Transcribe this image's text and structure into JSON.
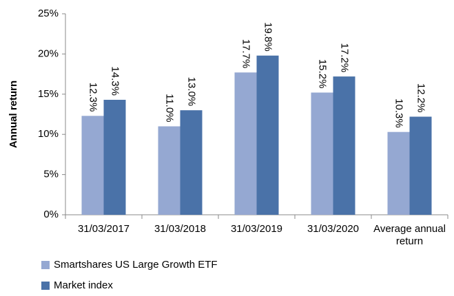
{
  "chart_data": {
    "type": "bar",
    "y_label": "Annual return",
    "categories": [
      "31/03/2017",
      "31/03/2018",
      "31/03/2019",
      "31/03/2020",
      "Average annual return"
    ],
    "series": [
      {
        "name": "Smartshares US Large Growth ETF",
        "color": "#95a8d2",
        "values": [
          12.3,
          11.0,
          17.7,
          15.2,
          10.3
        ],
        "value_labels": [
          "12.3%",
          "11.0%",
          "17.7%",
          "15.2%",
          "10.3%"
        ]
      },
      {
        "name": "Market index",
        "color": "#4a72a8",
        "values": [
          14.3,
          13.0,
          19.8,
          17.2,
          12.2
        ],
        "value_labels": [
          "14.3%",
          "13.0%",
          "19.8%",
          "17.2%",
          "12.2%"
        ]
      }
    ],
    "ylim": [
      0,
      25
    ],
    "yticks": [
      {
        "value": 0,
        "label": "0%"
      },
      {
        "value": 5,
        "label": "5%"
      },
      {
        "value": 10,
        "label": "10%"
      },
      {
        "value": 15,
        "label": "15%"
      },
      {
        "value": 20,
        "label": "20%"
      },
      {
        "value": 25,
        "label": "25%"
      }
    ],
    "grid": false
  }
}
